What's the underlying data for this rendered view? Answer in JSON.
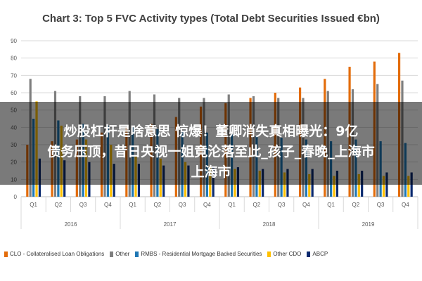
{
  "chart_data": {
    "type": "bar",
    "title": "Chart 3: Top 5 FVC Activity types (Total Debt Securities Issued €bn)",
    "ylim": [
      0,
      90
    ],
    "yticks": [
      "0",
      "10",
      "20",
      "30",
      "40",
      "50",
      "60",
      "70",
      "80",
      "90"
    ],
    "grid": true,
    "legend_position": "bottom",
    "categories": [
      "Q1",
      "Q2",
      "Q3",
      "Q4",
      "Q1",
      "Q2",
      "Q3",
      "Q4",
      "Q1",
      "Q2",
      "Q3",
      "Q4",
      "Q1",
      "Q2",
      "Q3",
      "Q4"
    ],
    "year_groups": [
      {
        "label": "2016",
        "span": 4
      },
      {
        "label": "2017",
        "span": 4
      },
      {
        "label": "2018",
        "span": 4
      },
      {
        "label": "2019",
        "span": 4
      }
    ],
    "series": [
      {
        "name": "CLO - Collateralised Loan Obligations",
        "color": "#e36c0a",
        "values": [
          30,
          32,
          33,
          37,
          40,
          42,
          46,
          52,
          54,
          57,
          60,
          63,
          68,
          75,
          78,
          83
        ]
      },
      {
        "name": "Other",
        "color": "#7f7f7f",
        "values": [
          68,
          61,
          58,
          58,
          61,
          59,
          57,
          57,
          59,
          58,
          57,
          57,
          61,
          62,
          65,
          67
        ]
      },
      {
        "name": "RMBS - Residential Mortgage Backed Securities",
        "color": "#1f77b4",
        "values": [
          45,
          44,
          42,
          41,
          40,
          39,
          38,
          37,
          36,
          35,
          34,
          33,
          32,
          33,
          32,
          31
        ]
      },
      {
        "name": "Other CDO",
        "color": "#ffc000",
        "values": [
          55,
          41,
          33,
          30,
          24,
          22,
          20,
          18,
          16,
          15,
          14,
          13,
          12,
          13,
          12,
          12
        ]
      },
      {
        "name": "ABCP",
        "color": "#0b2a6f",
        "values": [
          22,
          21,
          20,
          19,
          19,
          18,
          18,
          17,
          17,
          16,
          16,
          16,
          15,
          15,
          14,
          14
        ]
      }
    ]
  },
  "overlay": {
    "line1": "炒股杠杆是啥意思 惊爆！董卿消失真相曝光：9亿",
    "line2": "债务压顶，昔日央视一姐竟沦落至此_孩子_春晚_上海市",
    "line3": "上海市"
  }
}
